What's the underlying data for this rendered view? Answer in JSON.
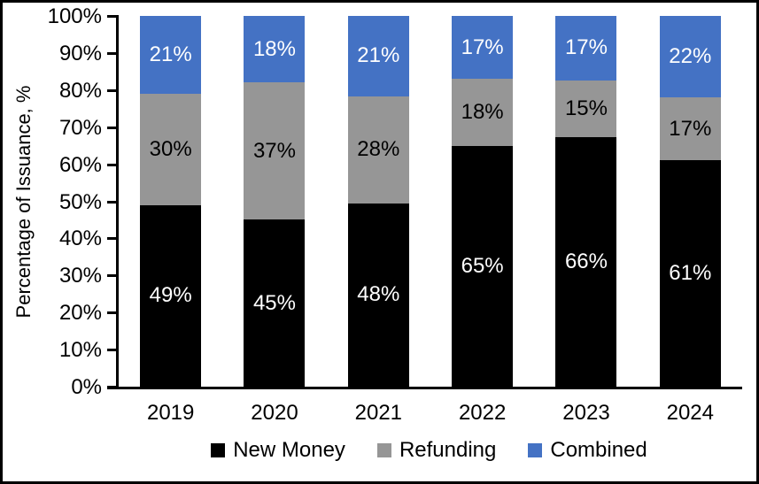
{
  "chart_data": {
    "type": "bar",
    "stacked": true,
    "orientation": "vertical",
    "title": "",
    "xlabel": "",
    "ylabel": "Percentage of Issuance, %",
    "categories": [
      "2019",
      "2020",
      "2021",
      "2022",
      "2023",
      "2024"
    ],
    "series": [
      {
        "name": "New Money",
        "color": "#000000",
        "label_color": "#ffffff",
        "values": [
          49,
          45,
          48,
          65,
          66,
          61
        ],
        "labels": [
          "49%",
          "45%",
          "48%",
          "65%",
          "66%",
          "61%"
        ]
      },
      {
        "name": "Refunding",
        "color": "#969696",
        "label_color": "#000000",
        "values": [
          30,
          37,
          28,
          18,
          15,
          17
        ],
        "labels": [
          "30%",
          "37%",
          "28%",
          "18%",
          "15%",
          "17%"
        ]
      },
      {
        "name": "Combined",
        "color": "#4472C4",
        "label_color": "#ffffff",
        "values": [
          21,
          18,
          21,
          17,
          17,
          22
        ],
        "labels": [
          "21%",
          "18%",
          "21%",
          "17%",
          "17%",
          "22%"
        ]
      }
    ],
    "y_ticks": [
      "0%",
      "10%",
      "20%",
      "30%",
      "40%",
      "50%",
      "60%",
      "70%",
      "80%",
      "90%",
      "100%"
    ],
    "ylim": [
      0,
      100
    ],
    "grid": false,
    "legend_position": "bottom",
    "axis_color": "#000000",
    "background_color": "#ffffff"
  }
}
